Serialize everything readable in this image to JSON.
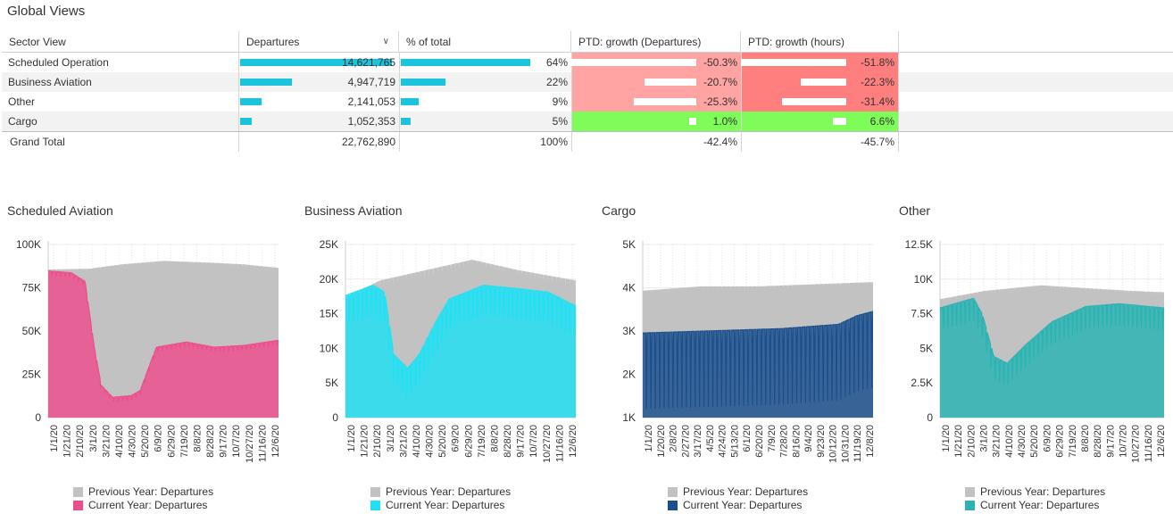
{
  "page_title": "Global Views",
  "table": {
    "headers": [
      "Sector View",
      "Departures",
      "% of total",
      "PTD: growth (Departures)",
      "PTD: growth (hours)"
    ],
    "rows": [
      {
        "name": "Scheduled Operation",
        "departures": "14,621,765",
        "pct": "64%",
        "growth_dep": "-50.3%",
        "growth_hours": "-51.8%",
        "dep_share": 0.64,
        "pct_share": 0.64,
        "gd": -0.503,
        "gh": -0.518
      },
      {
        "name": "Business Aviation",
        "departures": "4,947,719",
        "pct": "22%",
        "growth_dep": "-20.7%",
        "growth_hours": "-22.3%",
        "dep_share": 0.22,
        "pct_share": 0.22,
        "gd": -0.207,
        "gh": -0.223
      },
      {
        "name": "Other",
        "departures": "2,141,053",
        "pct": "9%",
        "growth_dep": "-25.3%",
        "growth_hours": "-31.4%",
        "dep_share": 0.09,
        "pct_share": 0.09,
        "gd": -0.253,
        "gh": -0.314
      },
      {
        "name": "Cargo",
        "departures": "1,052,353",
        "pct": "5%",
        "growth_dep": "1.0%",
        "growth_hours": "6.6%",
        "dep_share": 0.05,
        "pct_share": 0.05,
        "gd": 0.01,
        "gh": 0.066
      }
    ],
    "total": {
      "name": "Grand Total",
      "departures": "22,762,890",
      "pct": "100%",
      "growth_dep": "-42.4%",
      "growth_hours": "-45.7%"
    },
    "colors": {
      "bar": "#1cc3dc",
      "neg_light": "#ffa3a3",
      "neg_dark": "#ff7f7f",
      "pos": "#7dfc5a"
    }
  },
  "chart_data": [
    {
      "type": "area",
      "title": "Scheduled Aviation",
      "ylim": [
        0,
        100000
      ],
      "y_ticks": [
        "0",
        "25K",
        "50K",
        "75K",
        "100K"
      ],
      "x_ticks": [
        "1/1/20",
        "1/21/20",
        "2/10/20",
        "3/1/20",
        "3/21/20",
        "4/10/20",
        "4/30/20",
        "5/20/20",
        "6/9/20",
        "6/29/20",
        "7/19/20",
        "8/8/20",
        "8/28/20",
        "9/17/20",
        "10/7/20",
        "10/27/20",
        "11/16/20",
        "12/6/20"
      ],
      "x_range": [
        "1/1/20",
        "12/31/20"
      ],
      "series": [
        {
          "name": "Previous Year: Departures",
          "color": "#c2c2c2",
          "knots": [
            [
              0,
              84000
            ],
            [
              0.18,
              84500
            ],
            [
              0.32,
              87000
            ],
            [
              0.5,
              89000
            ],
            [
              0.7,
              88000
            ],
            [
              0.85,
              87000
            ],
            [
              1,
              85000
            ]
          ],
          "amp": 3500,
          "period": 7
        },
        {
          "name": "Current Year: Departures",
          "color": "#ee4d8c",
          "knots": [
            [
              0,
              84000
            ],
            [
              0.1,
              83000
            ],
            [
              0.16,
              78000
            ],
            [
              0.2,
              40000
            ],
            [
              0.23,
              18000
            ],
            [
              0.28,
              11000
            ],
            [
              0.36,
              12000
            ],
            [
              0.4,
              15000
            ],
            [
              0.43,
              26000
            ],
            [
              0.47,
              40000
            ],
            [
              0.6,
              43000
            ],
            [
              0.72,
              40000
            ],
            [
              0.85,
              41000
            ],
            [
              1,
              44000
            ]
          ],
          "amp": 2000,
          "period": 7
        }
      ]
    },
    {
      "type": "area",
      "title": "Business Aviation",
      "ylim": [
        0,
        25000
      ],
      "y_ticks": [
        "0",
        "5K",
        "10K",
        "15K",
        "20K",
        "25K"
      ],
      "x_ticks": [
        "1/1/20",
        "1/21/20",
        "2/10/20",
        "3/1/20",
        "3/21/20",
        "4/10/20",
        "4/30/20",
        "5/20/20",
        "6/9/20",
        "6/29/20",
        "7/19/20",
        "8/8/20",
        "8/28/20",
        "9/17/20",
        "10/7/20",
        "10/27/20",
        "11/16/20",
        "12/6/20"
      ],
      "x_range": [
        "1/1/20",
        "12/31/20"
      ],
      "series": [
        {
          "name": "Previous Year: Departures",
          "color": "#c2c2c2",
          "knots": [
            [
              0,
              16000
            ],
            [
              0.15,
              18500
            ],
            [
              0.35,
              20000
            ],
            [
              0.55,
              21500
            ],
            [
              0.75,
              20000
            ],
            [
              1,
              18500
            ]
          ],
          "amp": 3500,
          "period": 7
        },
        {
          "name": "Current Year: Departures",
          "color": "#1fe1f5",
          "knots": [
            [
              0,
              16500
            ],
            [
              0.12,
              18000
            ],
            [
              0.17,
              17000
            ],
            [
              0.21,
              8000
            ],
            [
              0.27,
              6000
            ],
            [
              0.32,
              8000
            ],
            [
              0.38,
              12000
            ],
            [
              0.45,
              16000
            ],
            [
              0.6,
              18000
            ],
            [
              0.75,
              17500
            ],
            [
              0.88,
              17000
            ],
            [
              1,
              15000
            ]
          ],
          "amp": 3200,
          "period": 7
        }
      ]
    },
    {
      "type": "area",
      "title": "Cargo",
      "ylim": [
        1000,
        5000
      ],
      "y_ticks": [
        "1K",
        "2K",
        "3K",
        "4K",
        "5K"
      ],
      "x_ticks": [
        "1/1/20",
        "1/20/20",
        "2/8/20",
        "2/27/20",
        "3/17/20",
        "4/5/20",
        "4/24/20",
        "5/13/20",
        "6/1/20",
        "6/20/20",
        "7/9/20",
        "7/28/20",
        "8/16/20",
        "9/4/20",
        "9/23/20",
        "10/12/20",
        "10/31/20",
        "11/19/20",
        "12/8/20"
      ],
      "x_range": [
        "1/1/20",
        "12/31/20"
      ],
      "series": [
        {
          "name": "Previous Year: Departures",
          "color": "#c2c2c2",
          "knots": [
            [
              0,
              3850
            ],
            [
              0.25,
              3950
            ],
            [
              0.5,
              3950
            ],
            [
              0.75,
              4000
            ],
            [
              1,
              4050
            ]
          ],
          "amp": 200,
          "period": 7
        },
        {
          "name": "Current Year: Departures",
          "color": "#1a4e8c",
          "knots": [
            [
              0,
              2500
            ],
            [
              0.3,
              2550
            ],
            [
              0.6,
              2600
            ],
            [
              0.85,
              2700
            ],
            [
              0.93,
              2900
            ],
            [
              1,
              3000
            ]
          ],
          "amp": 1300,
          "period": 7
        }
      ]
    },
    {
      "type": "area",
      "title": "Other",
      "ylim": [
        0,
        12500
      ],
      "y_ticks": [
        "0",
        "2.5K",
        "5K",
        "7.5K",
        "10K",
        "12.5K"
      ],
      "x_ticks": [
        "1/1/20",
        "1/21/20",
        "2/10/20",
        "3/1/20",
        "3/21/20",
        "4/10/20",
        "4/30/20",
        "5/20/20",
        "6/9/20",
        "6/29/20",
        "7/19/20",
        "8/8/20",
        "8/28/20",
        "9/17/20",
        "10/7/20",
        "10/27/20",
        "11/16/20",
        "12/6/20"
      ],
      "x_range": [
        "1/1/20",
        "12/31/20"
      ],
      "series": [
        {
          "name": "Previous Year: Departures",
          "color": "#c2c2c2",
          "knots": [
            [
              0,
              8200
            ],
            [
              0.2,
              8800
            ],
            [
              0.45,
              9200
            ],
            [
              0.65,
              9000
            ],
            [
              0.85,
              8800
            ],
            [
              1,
              8700
            ]
          ],
          "amp": 900,
          "period": 7
        },
        {
          "name": "Current Year: Departures",
          "color": "#2ab3b3",
          "knots": [
            [
              0,
              7500
            ],
            [
              0.15,
              8200
            ],
            [
              0.19,
              7000
            ],
            [
              0.24,
              4000
            ],
            [
              0.3,
              3500
            ],
            [
              0.38,
              4800
            ],
            [
              0.5,
              6500
            ],
            [
              0.65,
              7600
            ],
            [
              0.8,
              7800
            ],
            [
              1,
              7500
            ]
          ],
          "amp": 1200,
          "period": 7
        }
      ]
    }
  ]
}
